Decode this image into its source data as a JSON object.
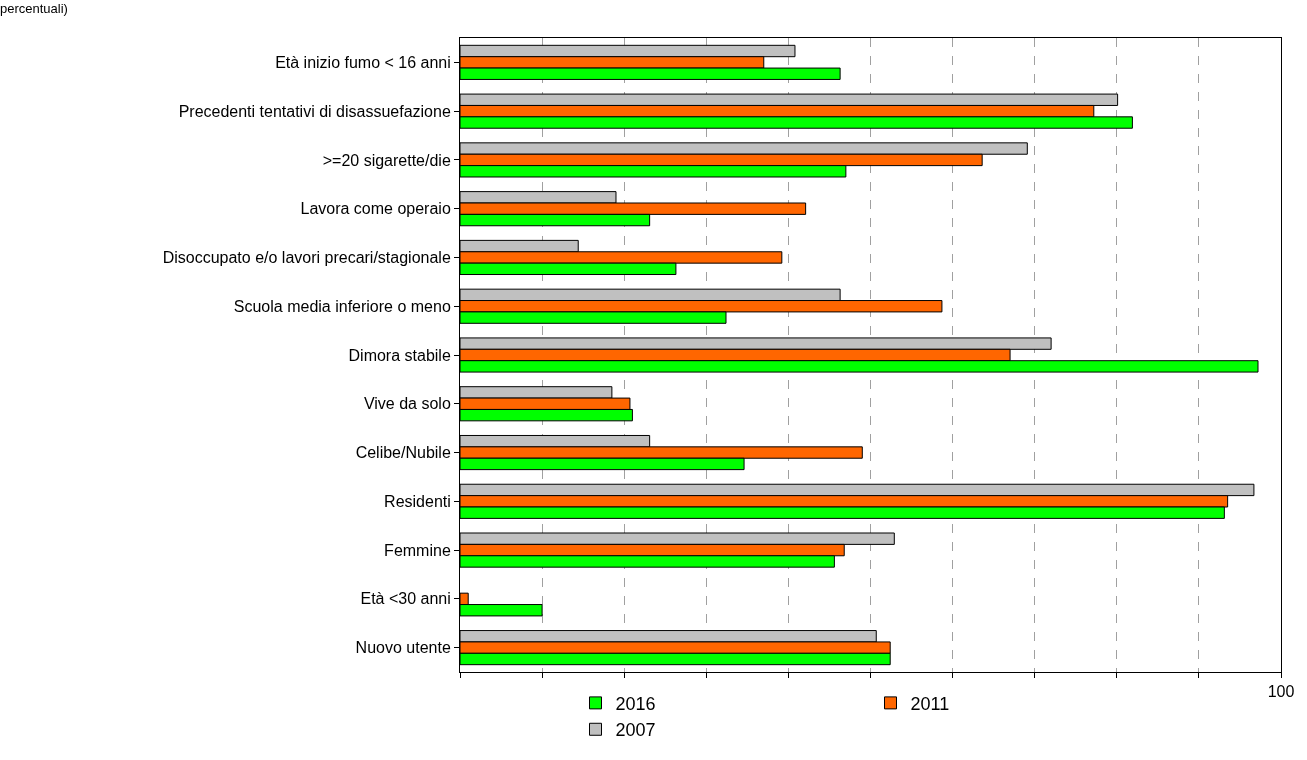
{
  "chart_data": {
    "type": "bar",
    "orientation": "horizontal",
    "title": "percentuali)",
    "categories": [
      "Età inizio fumo < 16 anni",
      "Precedenti tentativi di disassuefazione",
      ">=20 sigarette/die",
      "Lavora come operaio",
      "Disoccupato e/o lavori precari/stagionale",
      "Scuola media inferiore o meno",
      "Dimora stabile",
      "Vive da solo",
      "Celibe/Nubile",
      "Residenti",
      "Femmine",
      "Età <30 anni",
      "Nuovo utente"
    ],
    "series": [
      {
        "name": "2016",
        "color": "#00ff00",
        "values": [
          46.3,
          81.9,
          47.0,
          23.1,
          26.3,
          32.4,
          97.2,
          21.0,
          34.6,
          93.1,
          45.6,
          10.0,
          52.4
        ]
      },
      {
        "name": "2011",
        "color": "#ff6600",
        "values": [
          37.0,
          77.2,
          63.6,
          42.1,
          39.2,
          58.7,
          67.0,
          20.7,
          49.0,
          93.5,
          46.8,
          1.0,
          52.4
        ]
      },
      {
        "name": "2007",
        "color": "#c0c0c0",
        "values": [
          40.8,
          80.1,
          69.1,
          19.0,
          14.4,
          46.3,
          72.0,
          18.5,
          23.1,
          96.7,
          52.9,
          null,
          50.7
        ]
      }
    ],
    "xlim": [
      0,
      100
    ],
    "xticks": [
      {
        "value": 0,
        "label": null
      },
      {
        "value": 10,
        "label": null
      },
      {
        "value": 20,
        "label": null
      },
      {
        "value": 30,
        "label": null
      },
      {
        "value": 40,
        "label": null
      },
      {
        "value": 50,
        "label": null
      },
      {
        "value": 60,
        "label": null
      },
      {
        "value": 70,
        "label": null
      },
      {
        "value": 80,
        "label": null
      },
      {
        "value": 90,
        "label": null
      },
      100
    ],
    "grid": "x",
    "legend": "bottom"
  }
}
